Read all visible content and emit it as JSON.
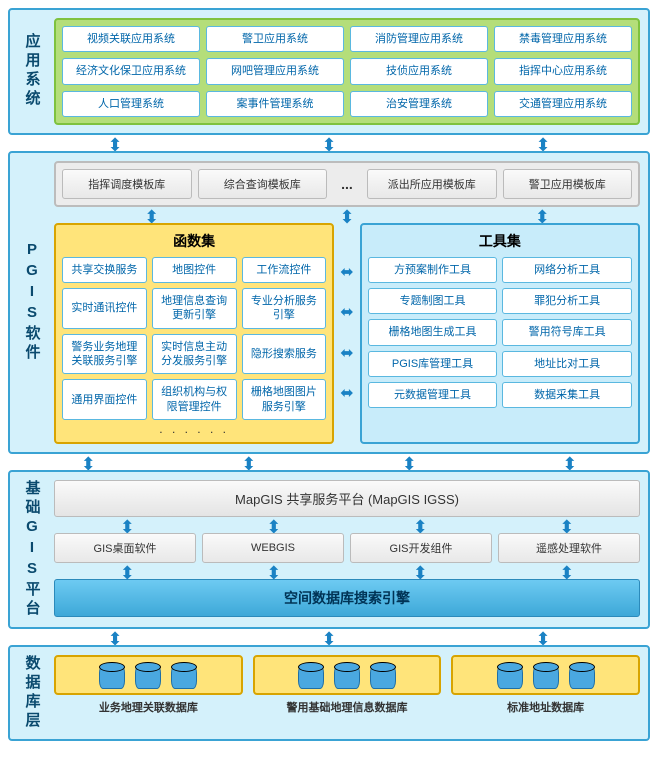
{
  "colors": {
    "layer_border": "#3aa3d4",
    "layer_bg": "#d4f1fb",
    "app_panel_border": "#7ec23f",
    "app_panel_bg": "#b4de7a",
    "grey_panel_border": "#bcbcbc",
    "grey_panel_bg": "#ececec",
    "func_border": "#d8a400",
    "func_bg": "#ffe47a",
    "tool_border": "#3aa3d4",
    "tool_bg": "#c8ecfa",
    "db_shelf_border": "#d8a400",
    "db_shelf_bg": "#ffe47a",
    "cyl_fill": "#4aa8e0",
    "cyl_border": "#1f6fa6",
    "arrow": "#1a82c4"
  },
  "layers": {
    "app": {
      "label": "应用系统",
      "rows": [
        [
          "视频关联应用系统",
          "警卫应用系统",
          "消防管理应用系统",
          "禁毒管理应用系统"
        ],
        [
          "经济文化保卫应用系统",
          "网吧管理应用系统",
          "技侦应用系统",
          "指挥中心应用系统"
        ],
        [
          "人口管理系统",
          "案事件管理系统",
          "治安管理系统",
          "交通管理应用系统"
        ]
      ]
    },
    "pgis": {
      "label": "PGIS软件",
      "templates": [
        "指挥调度模板库",
        "综合查询模板库",
        "...",
        "派出所应用模板库",
        "警卫应用模板库"
      ],
      "func": {
        "title": "函数集",
        "items": [
          "共享交换服务",
          "地图控件",
          "工作流控件",
          "实时通讯控件",
          "地理信息查询更新引擎",
          "专业分析服务引擎",
          "警务业务地理关联服务引擎",
          "实时信息主动分发服务引擎",
          "隐形搜索服务",
          "通用界面控件",
          "组织机构与权限管理控件",
          "栅格地图图片服务引擎"
        ]
      },
      "tool": {
        "title": "工具集",
        "items": [
          "方预案制作工具",
          "网络分析工具",
          "专题制图工具",
          "罪犯分析工具",
          "栅格地图生成工具",
          "警用符号库工具",
          "PGIS库管理工具",
          "地址比对工具",
          "元数据管理工具",
          "数据采集工具"
        ]
      }
    },
    "base": {
      "label": "基础GIS平台",
      "platform": "MapGIS 共享服务平台 (MapGIS IGSS)",
      "software": [
        "GIS桌面软件",
        "WEBGIS",
        "GIS开发组件",
        "遥感处理软件"
      ],
      "engine": "空间数据库搜索引擎"
    },
    "db": {
      "label": "数据库层",
      "items": [
        "业务地理关联数据库",
        "警用基础地理信息数据库",
        "标准地址数据库"
      ]
    }
  }
}
